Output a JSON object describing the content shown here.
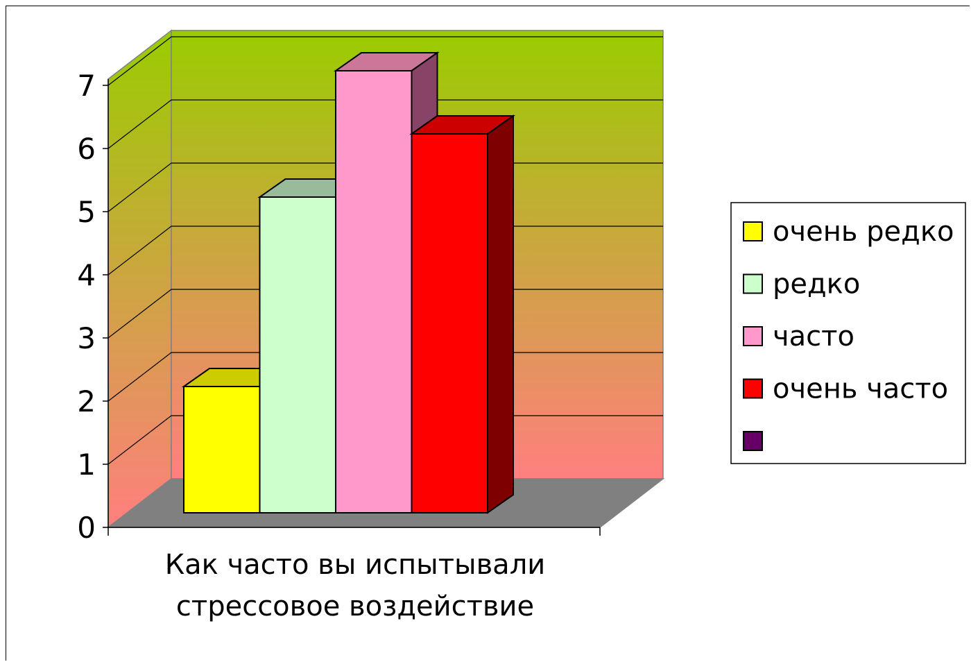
{
  "chart_data": {
    "type": "bar",
    "style": "3d",
    "title": "",
    "xlabel": "",
    "ylabel": "",
    "categories": [
      "Как часто вы испытывали стрессовое воздействие"
    ],
    "category_lines": [
      "Как часто вы испытывали",
      "стрессовое воздействие"
    ],
    "ylim": [
      0,
      7
    ],
    "yticks": [
      "0",
      "1",
      "2",
      "3",
      "4",
      "5",
      "6",
      "7"
    ],
    "grid": true,
    "legend": "right",
    "series": [
      {
        "name": "очень редко",
        "values": [
          2
        ],
        "color": "#ffff00",
        "top": "#cccc00",
        "side": "#999900"
      },
      {
        "name": "редко",
        "values": [
          5
        ],
        "color": "#ccffcc",
        "top": "#99bb99",
        "side": "#669966"
      },
      {
        "name": "часто",
        "values": [
          7
        ],
        "color": "#ff99cc",
        "top": "#cc7799",
        "side": "#884466"
      },
      {
        "name": "очень часто",
        "values": [
          6
        ],
        "color": "#ff0000",
        "top": "#cc0000",
        "side": "#7f0000"
      },
      {
        "name": "",
        "values": [
          0
        ],
        "color": "#660066",
        "top": "#440044",
        "side": "#330033"
      }
    ],
    "wall_gradient": [
      "#99cc00",
      "#ff7f7f"
    ],
    "floor_color": "#808080"
  }
}
